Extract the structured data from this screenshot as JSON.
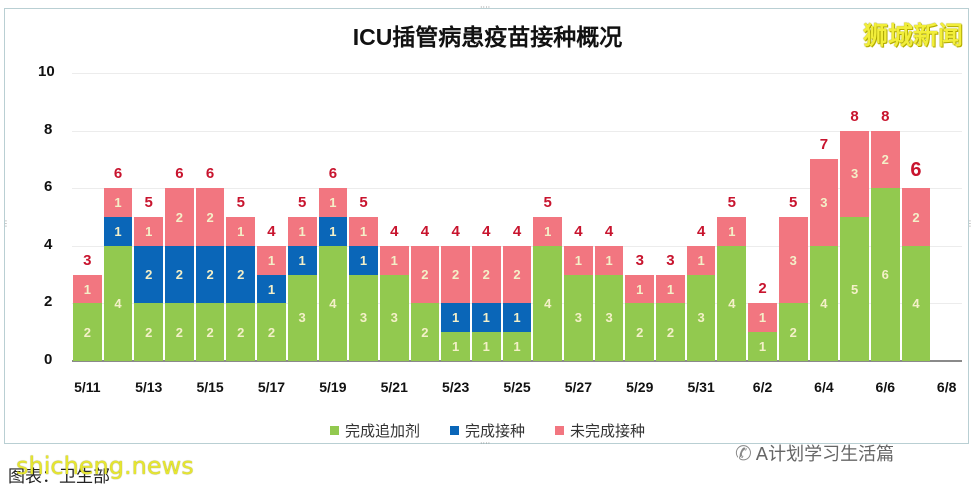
{
  "header": {
    "title": "ICU插管病患疫苗接种概况",
    "watermark": "狮城新闻"
  },
  "colors": {
    "booster": "#92c94f",
    "vaccinated": "#0a66b8",
    "unvaccinated": "#f27680",
    "total_label": "#c8142e"
  },
  "legend": [
    {
      "label": "完成追加剂",
      "color": "#92c94f"
    },
    {
      "label": "完成接种",
      "color": "#0a66b8"
    },
    {
      "label": "未完成接种",
      "color": "#f27680"
    }
  ],
  "footer": {
    "wechat_account": "A计划学习生活篇",
    "source_label": "图表：卫生部",
    "watermark": "shicheng.news"
  },
  "chart_data": {
    "type": "bar",
    "stacked": true,
    "title": "ICU插管病患疫苗接种概况",
    "xlabel": "",
    "ylabel": "",
    "ylim": [
      0,
      10
    ],
    "yticks": [
      0,
      2,
      4,
      6,
      8,
      10
    ],
    "grid": true,
    "legend_position": "bottom",
    "x_tick_labels": [
      "5/11",
      "5/13",
      "5/15",
      "5/17",
      "5/19",
      "5/21",
      "5/23",
      "5/25",
      "5/27",
      "5/29",
      "5/31",
      "6/2",
      "6/4",
      "6/6",
      "6/8"
    ],
    "categories": [
      "5/11",
      "5/12",
      "5/13",
      "5/14",
      "5/15",
      "5/16",
      "5/17",
      "5/18",
      "5/19",
      "5/20",
      "5/21",
      "5/22",
      "5/23",
      "5/24",
      "5/25",
      "5/26",
      "5/27",
      "5/28",
      "5/29",
      "5/30",
      "5/31",
      "6/1",
      "6/2",
      "6/3",
      "6/4",
      "6/5",
      "6/6",
      "6/7",
      "6/8"
    ],
    "series": [
      {
        "name": "完成追加剂",
        "color": "#92c94f",
        "values": [
          2,
          4,
          2,
          2,
          2,
          2,
          2,
          3,
          4,
          3,
          3,
          2,
          1,
          1,
          1,
          4,
          3,
          3,
          2,
          2,
          3,
          4,
          1,
          2,
          4,
          5,
          6,
          4,
          null
        ]
      },
      {
        "name": "完成接种",
        "color": "#0a66b8",
        "values": [
          0,
          1,
          2,
          2,
          2,
          2,
          1,
          1,
          1,
          1,
          0,
          0,
          1,
          1,
          1,
          0,
          0,
          0,
          0,
          0,
          0,
          0,
          0,
          0,
          0,
          0,
          0,
          0,
          null
        ]
      },
      {
        "name": "未完成接种",
        "color": "#f27680",
        "values": [
          1,
          1,
          1,
          2,
          2,
          1,
          1,
          1,
          1,
          1,
          1,
          2,
          2,
          2,
          2,
          1,
          1,
          1,
          1,
          1,
          1,
          1,
          1,
          3,
          3,
          3,
          2,
          2,
          null
        ]
      }
    ],
    "totals": [
      3,
      6,
      5,
      6,
      6,
      5,
      4,
      5,
      6,
      5,
      4,
      4,
      4,
      4,
      4,
      5,
      4,
      4,
      3,
      3,
      4,
      5,
      2,
      5,
      7,
      8,
      8,
      6,
      null
    ]
  }
}
